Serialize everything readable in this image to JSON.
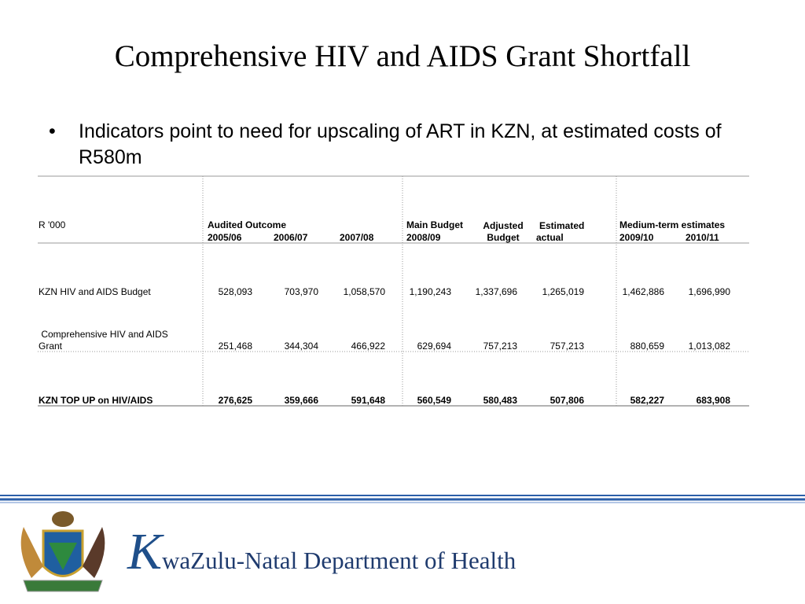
{
  "title": "Comprehensive HIV and AIDS Grant Shortfall",
  "bullet": "Indicators point to need for upscaling of ART in KZN, at estimated costs of R580m",
  "table": {
    "header": [
      "R '000",
      "Audited Outcome",
      "Main Budget",
      "Adjusted Budget",
      "Estimated actual",
      "Medium-term estimates"
    ],
    "years": [
      "2005/06",
      "2006/07",
      "2007/08",
      "2008/09",
      "2009/10",
      "2010/11"
    ],
    "rows": [
      {
        "label": "KZN HIV and AIDS Budget",
        "values": [
          "528,093",
          "703,970",
          "1,058,570",
          "1,190,243",
          "1,337,696",
          "1,265,019",
          "1,462,886",
          "1,696,990"
        ]
      },
      {
        "label": " Comprehensive HIV and AIDS Grant",
        "values": [
          "251,468",
          "344,304",
          "466,922",
          "629,694",
          "757,213",
          "757,213",
          "880,659",
          "1,013,082"
        ]
      },
      {
        "label": "KZN TOP UP on HIV/AIDS",
        "values": [
          "276,625",
          "359,666",
          "591,648",
          "560,549",
          "580,483",
          "507,806",
          "582,227",
          "683,908"
        ]
      }
    ]
  },
  "footer": {
    "org": "KwaZulu-Natal Department of Health"
  }
}
